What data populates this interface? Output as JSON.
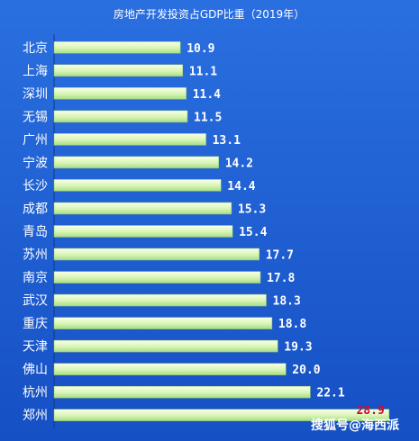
{
  "chart_data": {
    "type": "bar",
    "orientation": "horizontal",
    "title": "房地产开发投资占GDP比重（2019年）",
    "categories": [
      "北京",
      "上海",
      "深圳",
      "无锡",
      "广州",
      "宁波",
      "长沙",
      "成都",
      "青岛",
      "苏州",
      "南京",
      "武汉",
      "重庆",
      "天津",
      "佛山",
      "杭州",
      "郑州"
    ],
    "values": [
      10.9,
      11.1,
      11.4,
      11.5,
      13.1,
      14.2,
      14.4,
      15.3,
      15.4,
      17.7,
      17.8,
      18.3,
      18.8,
      19.3,
      20.0,
      22.1,
      28.9
    ],
    "value_labels": [
      "10.9",
      "11.1",
      "11.4",
      "11.5",
      "13.1",
      "14.2",
      "14.4",
      "15.3",
      "15.4",
      "17.7",
      "17.8",
      "18.3",
      "18.8",
      "19.3",
      "20.0",
      "22.1",
      "28.9"
    ],
    "highlight_index": 16,
    "xlim": [
      0,
      30
    ],
    "grid": false,
    "colors": {
      "background": "#1a5fd0",
      "bar_light": "#fbffe8",
      "bar_mid": "#d6f5b4",
      "bar_dark": "#a8dc86",
      "label": "#ffffff",
      "highlight_label": "#c8102e"
    }
  },
  "watermark": "搜狐号@海西派"
}
